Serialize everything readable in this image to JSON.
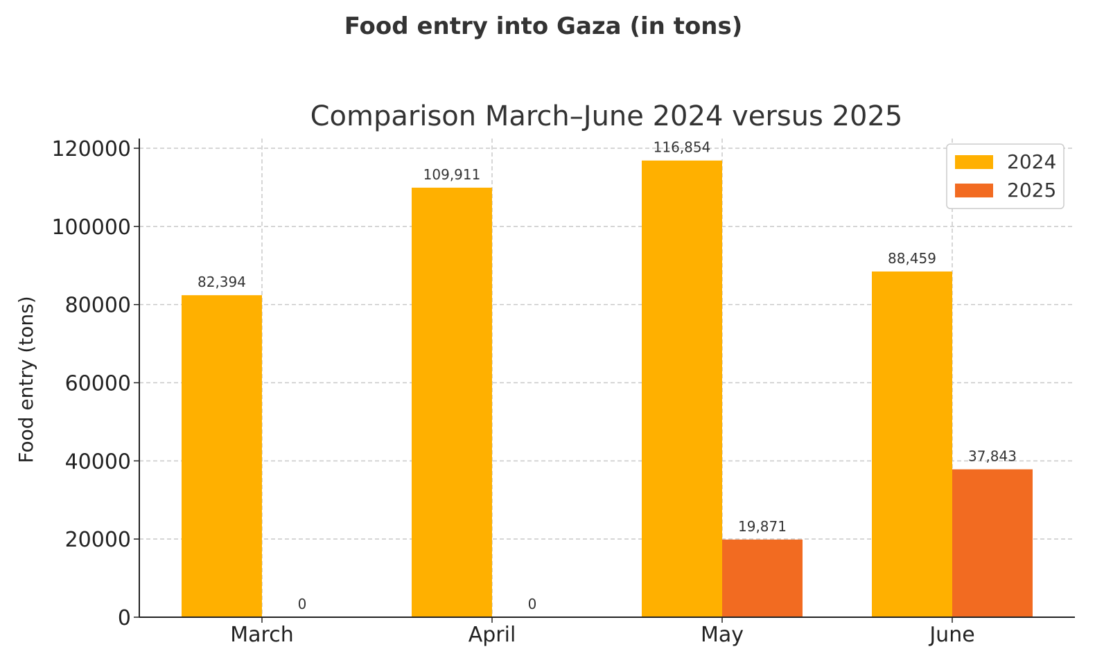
{
  "chart_data": {
    "type": "bar",
    "suptitle": "Food entry into Gaza (in tons)",
    "title": "Comparison March–June 2024 versus 2025",
    "xlabel": "",
    "ylabel": "Food entry (tons)",
    "categories": [
      "March",
      "April",
      "May",
      "June"
    ],
    "series": [
      {
        "name": "2024",
        "color": "#FFB000",
        "values": [
          82394,
          109911,
          116854,
          88459
        ],
        "labels": [
          "82,394",
          "109,911",
          "116,854",
          "88,459"
        ]
      },
      {
        "name": "2025",
        "color": "#F26B21",
        "values": [
          0,
          0,
          19871,
          37843
        ],
        "labels": [
          "0",
          "0",
          "19,871",
          "37,843"
        ]
      }
    ],
    "ylim": [
      0,
      120000
    ],
    "yticks": [
      0,
      20000,
      40000,
      60000,
      80000,
      100000,
      120000
    ],
    "ytick_labels": [
      "0",
      "20000",
      "40000",
      "60000",
      "80000",
      "100000",
      "120000"
    ],
    "grid": true,
    "legend": "top-right"
  }
}
